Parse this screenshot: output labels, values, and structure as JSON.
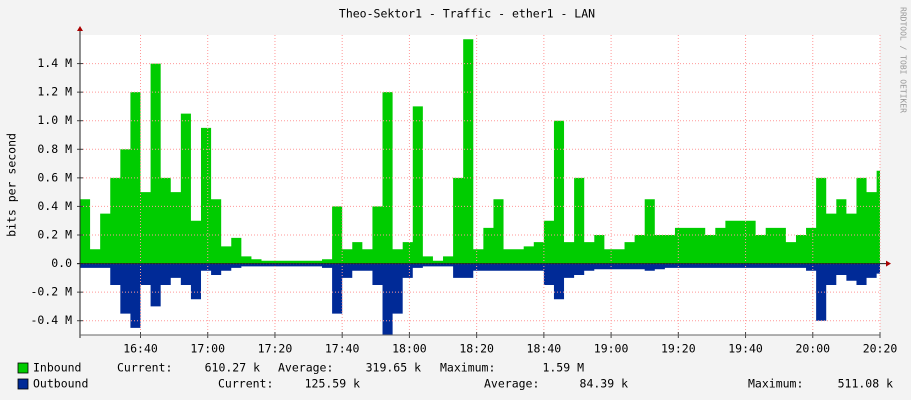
{
  "chart_data": {
    "type": "area",
    "title": "Theo-Sektor1 - Traffic - ether1 - LAN",
    "ylabel": "bits per second",
    "side_text": "RRDTOOL / TOBI OETIKER",
    "xlim": [
      982,
      1220
    ],
    "xticks": [
      {
        "value": 1000,
        "label": "16:40"
      },
      {
        "value": 1020,
        "label": "17:00"
      },
      {
        "value": 1040,
        "label": "17:20"
      },
      {
        "value": 1060,
        "label": "17:40"
      },
      {
        "value": 1080,
        "label": "18:00"
      },
      {
        "value": 1100,
        "label": "18:20"
      },
      {
        "value": 1120,
        "label": "18:40"
      },
      {
        "value": 1140,
        "label": "19:00"
      },
      {
        "value": 1160,
        "label": "19:20"
      },
      {
        "value": 1180,
        "label": "19:40"
      },
      {
        "value": 1200,
        "label": "20:00"
      },
      {
        "value": 1220,
        "label": "20:20"
      }
    ],
    "ylim": [
      -0.5,
      1.6
    ],
    "yticks": [
      {
        "value": -0.4,
        "label": "-0.4 M"
      },
      {
        "value": -0.2,
        "label": "-0.2 M"
      },
      {
        "value": 0,
        "label": "0.0"
      },
      {
        "value": 0.2,
        "label": "0.2 M"
      },
      {
        "value": 0.4,
        "label": "0.4 M"
      },
      {
        "value": 0.6,
        "label": "0.6 M"
      },
      {
        "value": 0.8,
        "label": "0.8 M"
      },
      {
        "value": 1.0,
        "label": "1.0 M"
      },
      {
        "value": 1.2,
        "label": "1.2 M"
      },
      {
        "value": 1.4,
        "label": "1.4 M"
      }
    ],
    "grid": true,
    "x": [
      982,
      985,
      988,
      991,
      994,
      997,
      1000,
      1003,
      1006,
      1009,
      1012,
      1015,
      1018,
      1021,
      1024,
      1027,
      1030,
      1033,
      1036,
      1039,
      1042,
      1045,
      1048,
      1051,
      1054,
      1057,
      1060,
      1063,
      1066,
      1069,
      1072,
      1075,
      1078,
      1081,
      1084,
      1087,
      1090,
      1093,
      1096,
      1099,
      1102,
      1105,
      1108,
      1111,
      1114,
      1117,
      1120,
      1123,
      1126,
      1129,
      1132,
      1135,
      1138,
      1141,
      1144,
      1147,
      1150,
      1153,
      1156,
      1159,
      1162,
      1165,
      1168,
      1171,
      1174,
      1177,
      1180,
      1183,
      1186,
      1189,
      1192,
      1195,
      1198,
      1201,
      1204,
      1207,
      1210,
      1213,
      1216,
      1219
    ],
    "series": [
      {
        "name": "Inbound",
        "color": "#00cc00",
        "values": [
          0.45,
          0.1,
          0.35,
          0.6,
          0.8,
          1.2,
          0.5,
          1.4,
          0.6,
          0.5,
          1.05,
          0.3,
          0.95,
          0.45,
          0.12,
          0.18,
          0.05,
          0.03,
          0.02,
          0.02,
          0.02,
          0.02,
          0.02,
          0.02,
          0.03,
          0.4,
          0.1,
          0.15,
          0.1,
          0.4,
          1.2,
          0.1,
          0.15,
          1.1,
          0.05,
          0.02,
          0.05,
          0.6,
          1.57,
          0.1,
          0.25,
          0.45,
          0.1,
          0.1,
          0.12,
          0.15,
          0.3,
          1.0,
          0.15,
          0.6,
          0.15,
          0.2,
          0.1,
          0.1,
          0.15,
          0.2,
          0.45,
          0.2,
          0.2,
          0.25,
          0.25,
          0.25,
          0.2,
          0.25,
          0.3,
          0.3,
          0.3,
          0.2,
          0.25,
          0.25,
          0.15,
          0.2,
          0.25,
          0.6,
          0.35,
          0.45,
          0.35,
          0.6,
          0.5,
          0.65
        ],
        "stats": [
          {
            "label": "Current:",
            "value": "610.27 k"
          },
          {
            "label": "Average:",
            "value": "319.65 k"
          },
          {
            "label": "Maximum:",
            "value": "1.59 M"
          }
        ]
      },
      {
        "name": "Outbound",
        "color": "#002a97",
        "values": [
          -0.03,
          -0.03,
          -0.03,
          -0.15,
          -0.35,
          -0.45,
          -0.15,
          -0.3,
          -0.15,
          -0.1,
          -0.15,
          -0.25,
          -0.05,
          -0.08,
          -0.05,
          -0.03,
          -0.02,
          -0.02,
          -0.02,
          -0.02,
          -0.02,
          -0.02,
          -0.02,
          -0.02,
          -0.03,
          -0.35,
          -0.1,
          -0.05,
          -0.05,
          -0.15,
          -0.5,
          -0.35,
          -0.1,
          -0.03,
          -0.02,
          -0.02,
          -0.02,
          -0.1,
          -0.1,
          -0.05,
          -0.05,
          -0.05,
          -0.05,
          -0.05,
          -0.05,
          -0.05,
          -0.15,
          -0.25,
          -0.1,
          -0.08,
          -0.05,
          -0.04,
          -0.04,
          -0.04,
          -0.04,
          -0.04,
          -0.05,
          -0.04,
          -0.03,
          -0.03,
          -0.03,
          -0.03,
          -0.03,
          -0.03,
          -0.03,
          -0.03,
          -0.03,
          -0.03,
          -0.03,
          -0.03,
          -0.03,
          -0.03,
          -0.05,
          -0.4,
          -0.15,
          -0.08,
          -0.12,
          -0.15,
          -0.1,
          -0.07
        ],
        "stats": [
          {
            "label": "Current:",
            "value": "125.59 k"
          },
          {
            "label": "Average:",
            "value": "84.39 k"
          },
          {
            "label": "Maximum:",
            "value": "511.08 k"
          }
        ]
      }
    ]
  }
}
